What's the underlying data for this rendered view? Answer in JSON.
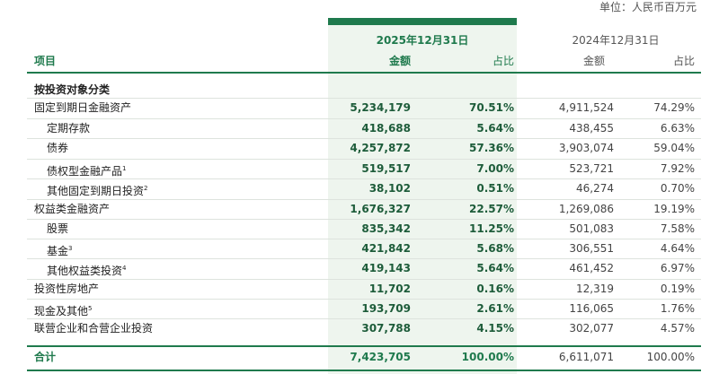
{
  "header": {
    "unit": "单位：人民币百万元",
    "period_2025": "2025年12月31日",
    "period_2024": "2024年12月31日",
    "columns": [
      "项目",
      "金额",
      "占比",
      "金额",
      "占比"
    ]
  },
  "table": {
    "section": "按投资对象分类",
    "rows": [
      {
        "item": "固定到期日金融资产",
        "amount_2025": "5,234,179",
        "share_2025": "70.51%",
        "amount_2024": "4,911,524",
        "share_2024": "74.29%"
      },
      {
        "item": "定期存款",
        "amount_2025": "418,688",
        "share_2025": "5.64%",
        "amount_2024": "438,455",
        "share_2024": "6.63%"
      },
      {
        "item": "债券",
        "amount_2025": "4,257,872",
        "share_2025": "57.36%",
        "amount_2024": "3,903,074",
        "share_2024": "59.04%"
      },
      {
        "item": "债权型金融产品",
        "note": "1",
        "amount_2025": "519,517",
        "share_2025": "7.00%",
        "amount_2024": "523,721",
        "share_2024": "7.92%"
      },
      {
        "item": "其他固定到期日投资",
        "note": "2",
        "amount_2025": "38,102",
        "share_2025": "0.51%",
        "amount_2024": "46,274",
        "share_2024": "0.70%"
      },
      {
        "item": "权益类金融资产",
        "amount_2025": "1,676,327",
        "share_2025": "22.57%",
        "amount_2024": "1,269,086",
        "share_2024": "19.19%"
      },
      {
        "item": "股票",
        "amount_2025": "835,342",
        "share_2025": "11.25%",
        "amount_2024": "501,083",
        "share_2024": "7.58%"
      },
      {
        "item": "基金",
        "note": "3",
        "amount_2025": "421,842",
        "share_2025": "5.68%",
        "amount_2024": "306,551",
        "share_2024": "4.64%"
      },
      {
        "item": "其他权益类投资",
        "note": "4",
        "amount_2025": "419,143",
        "share_2025": "5.64%",
        "amount_2024": "461,452",
        "share_2024": "6.97%"
      },
      {
        "item": "投资性房地产",
        "amount_2025": "11,702",
        "share_2025": "0.16%",
        "amount_2024": "12,319",
        "share_2024": "0.19%"
      },
      {
        "item": "现金及其他",
        "note": "5",
        "amount_2025": "193,709",
        "share_2025": "2.61%",
        "amount_2024": "116,065",
        "share_2024": "1.76%"
      },
      {
        "item": "联营企业和合营企业投资",
        "amount_2025": "307,788",
        "share_2025": "4.15%",
        "amount_2024": "302,077",
        "share_2024": "4.57%"
      }
    ],
    "total": {
      "item": "合计",
      "amount_2025": "7,423,705",
      "share_2025": "100.00%",
      "amount_2024": "6,611,071",
      "share_2024": "100.00%"
    }
  }
}
